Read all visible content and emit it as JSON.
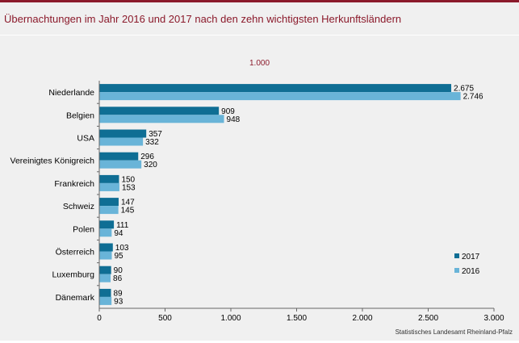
{
  "header": {
    "title": "Übernachtungen im Jahr 2016 und 2017 nach den zehn wichtigsten Herkunftsländern"
  },
  "chart_data": {
    "type": "bar",
    "orientation": "horizontal",
    "unit_label": "1.000",
    "categories": [
      "Niederlande",
      "Belgien",
      "USA",
      "Vereinigtes Königreich",
      "Frankreich",
      "Schweiz",
      "Polen",
      "Österreich",
      "Luxemburg",
      "Dänemark"
    ],
    "series": [
      {
        "name": "2017",
        "color": "#0f6e94",
        "values": [
          2675,
          909,
          357,
          296,
          150,
          147,
          111,
          103,
          90,
          89
        ],
        "labels": [
          "2.675",
          "909",
          "357",
          "296",
          "150",
          "147",
          "111",
          "103",
          "90",
          "89"
        ]
      },
      {
        "name": "2016",
        "color": "#69b4d8",
        "values": [
          2746,
          948,
          332,
          320,
          153,
          145,
          94,
          95,
          86,
          93
        ],
        "labels": [
          "2.746",
          "948",
          "332",
          "320",
          "153",
          "145",
          "94",
          "95",
          "86",
          "93"
        ]
      }
    ],
    "xlim": [
      0,
      3000
    ],
    "xticks": [
      0,
      500,
      1000,
      1500,
      2000,
      2500,
      3000
    ],
    "xtick_labels": [
      "0",
      "500",
      "1.000",
      "1.500",
      "2.000",
      "2.500",
      "3.000"
    ],
    "legend": {
      "position": "bottom-right"
    },
    "grid": false
  },
  "footer": {
    "source": "Statistisches Landesamt Rheinland-Pfalz"
  }
}
